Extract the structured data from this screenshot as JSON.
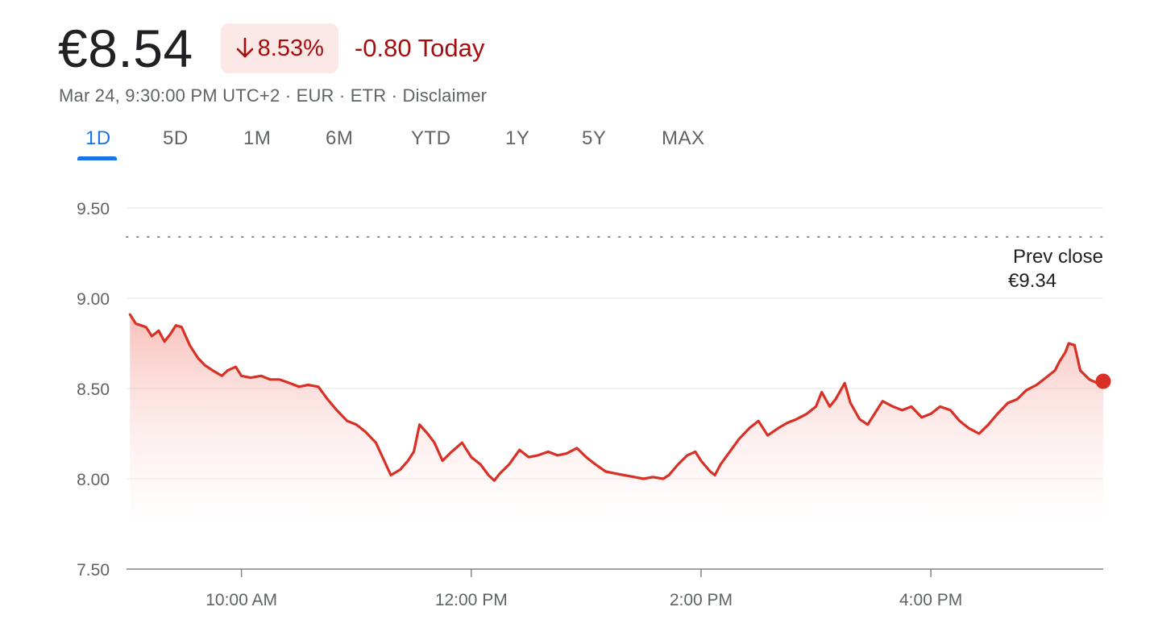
{
  "quote": {
    "price": "€8.54",
    "change_percent": "8.53%",
    "change_abs": "-0.80 Today",
    "meta": "Mar 24, 9:30:00 PM UTC+2 · EUR · ETR · Disclaimer",
    "trend_color": "#d93025",
    "badge_bg": "#fce8e6",
    "badge_text_color": "#a50e0e",
    "arrow_icon": "arrow-down-icon"
  },
  "tabs": {
    "active": "1D",
    "items": [
      "1D",
      "5D",
      "1M",
      "6M",
      "YTD",
      "1Y",
      "5Y",
      "MAX"
    ],
    "accent_color": "#1a73e8"
  },
  "chart_data": {
    "type": "area",
    "title": "",
    "xlabel": "",
    "ylabel": "",
    "x_range_hours": [
      9.0,
      17.5
    ],
    "x_ticks": [
      {
        "label": "10:00 AM",
        "hour": 10
      },
      {
        "label": "12:00 PM",
        "hour": 12
      },
      {
        "label": "2:00 PM",
        "hour": 14
      },
      {
        "label": "4:00 PM",
        "hour": 16
      }
    ],
    "ylim": [
      7.5,
      9.5
    ],
    "y_ticks": [
      "9.50",
      "9.00",
      "8.50",
      "8.00",
      "7.50"
    ],
    "y_tick_values": [
      9.5,
      9.0,
      8.5,
      8.0,
      7.5
    ],
    "grid": true,
    "reference_line": {
      "label": "Prev close",
      "value_label": "€9.34",
      "value": 9.34
    },
    "last_point": {
      "hour": 17.5,
      "price": 8.54
    },
    "series": [
      {
        "points": [
          [
            9.03,
            8.91
          ],
          [
            9.08,
            8.86
          ],
          [
            9.17,
            8.84
          ],
          [
            9.22,
            8.79
          ],
          [
            9.28,
            8.82
          ],
          [
            9.33,
            8.76
          ],
          [
            9.38,
            8.8
          ],
          [
            9.43,
            8.85
          ],
          [
            9.48,
            8.84
          ],
          [
            9.55,
            8.74
          ],
          [
            9.62,
            8.67
          ],
          [
            9.68,
            8.63
          ],
          [
            9.75,
            8.6
          ],
          [
            9.83,
            8.57
          ],
          [
            9.88,
            8.6
          ],
          [
            9.95,
            8.62
          ],
          [
            10.0,
            8.57
          ],
          [
            10.08,
            8.56
          ],
          [
            10.17,
            8.57
          ],
          [
            10.25,
            8.55
          ],
          [
            10.33,
            8.55
          ],
          [
            10.42,
            8.53
          ],
          [
            10.5,
            8.51
          ],
          [
            10.58,
            8.52
          ],
          [
            10.67,
            8.51
          ],
          [
            10.75,
            8.44
          ],
          [
            10.83,
            8.38
          ],
          [
            10.92,
            8.32
          ],
          [
            11.0,
            8.3
          ],
          [
            11.08,
            8.26
          ],
          [
            11.17,
            8.2
          ],
          [
            11.25,
            8.09
          ],
          [
            11.3,
            8.02
          ],
          [
            11.38,
            8.05
          ],
          [
            11.45,
            8.1
          ],
          [
            11.5,
            8.15
          ],
          [
            11.55,
            8.3
          ],
          [
            11.62,
            8.25
          ],
          [
            11.68,
            8.2
          ],
          [
            11.75,
            8.1
          ],
          [
            11.83,
            8.15
          ],
          [
            11.92,
            8.2
          ],
          [
            12.0,
            8.12
          ],
          [
            12.08,
            8.08
          ],
          [
            12.15,
            8.02
          ],
          [
            12.2,
            7.99
          ],
          [
            12.25,
            8.03
          ],
          [
            12.33,
            8.08
          ],
          [
            12.42,
            8.16
          ],
          [
            12.5,
            8.12
          ],
          [
            12.58,
            8.13
          ],
          [
            12.67,
            8.15
          ],
          [
            12.75,
            8.13
          ],
          [
            12.83,
            8.14
          ],
          [
            12.92,
            8.17
          ],
          [
            13.0,
            8.12
          ],
          [
            13.08,
            8.08
          ],
          [
            13.17,
            8.04
          ],
          [
            13.25,
            8.03
          ],
          [
            13.33,
            8.02
          ],
          [
            13.42,
            8.01
          ],
          [
            13.5,
            8.0
          ],
          [
            13.58,
            8.01
          ],
          [
            13.67,
            8.0
          ],
          [
            13.72,
            8.02
          ],
          [
            13.8,
            8.08
          ],
          [
            13.88,
            8.13
          ],
          [
            13.95,
            8.15
          ],
          [
            14.0,
            8.1
          ],
          [
            14.08,
            8.04
          ],
          [
            14.12,
            8.02
          ],
          [
            14.17,
            8.08
          ],
          [
            14.25,
            8.15
          ],
          [
            14.33,
            8.22
          ],
          [
            14.42,
            8.28
          ],
          [
            14.5,
            8.32
          ],
          [
            14.58,
            8.24
          ],
          [
            14.67,
            8.28
          ],
          [
            14.75,
            8.31
          ],
          [
            14.83,
            8.33
          ],
          [
            14.92,
            8.36
          ],
          [
            15.0,
            8.4
          ],
          [
            15.05,
            8.48
          ],
          [
            15.12,
            8.4
          ],
          [
            15.17,
            8.44
          ],
          [
            15.25,
            8.53
          ],
          [
            15.3,
            8.42
          ],
          [
            15.38,
            8.33
          ],
          [
            15.45,
            8.3
          ],
          [
            15.5,
            8.35
          ],
          [
            15.58,
            8.43
          ],
          [
            15.67,
            8.4
          ],
          [
            15.75,
            8.38
          ],
          [
            15.83,
            8.4
          ],
          [
            15.92,
            8.34
          ],
          [
            16.0,
            8.36
          ],
          [
            16.08,
            8.4
          ],
          [
            16.17,
            8.38
          ],
          [
            16.25,
            8.32
          ],
          [
            16.33,
            8.28
          ],
          [
            16.42,
            8.25
          ],
          [
            16.5,
            8.3
          ],
          [
            16.58,
            8.36
          ],
          [
            16.67,
            8.42
          ],
          [
            16.75,
            8.44
          ],
          [
            16.83,
            8.49
          ],
          [
            16.92,
            8.52
          ],
          [
            17.0,
            8.56
          ],
          [
            17.08,
            8.6
          ],
          [
            17.12,
            8.65
          ],
          [
            17.17,
            8.7
          ],
          [
            17.2,
            8.75
          ],
          [
            17.25,
            8.74
          ],
          [
            17.3,
            8.6
          ],
          [
            17.38,
            8.55
          ],
          [
            17.45,
            8.53
          ],
          [
            17.5,
            8.54
          ]
        ]
      }
    ]
  }
}
